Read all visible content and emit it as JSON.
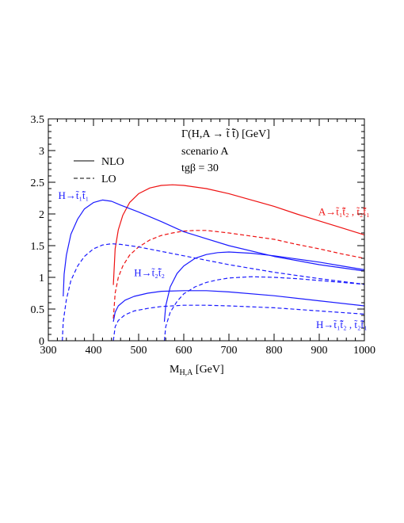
{
  "chart_data": {
    "type": "line",
    "title_lines": [
      "Γ(H,A → t̃ t̃̄) [GeV]",
      "scenario A",
      "tgβ = 30"
    ],
    "xlabel": "M",
    "xlabel_sub": "H,A",
    "xlabel_unit": " [GeV]",
    "ylabel": "",
    "xlim": [
      300,
      1000
    ],
    "ylim": [
      0,
      3.5
    ],
    "x_ticks": [
      300,
      400,
      500,
      600,
      700,
      800,
      900,
      1000
    ],
    "y_ticks": [
      0,
      0.5,
      1,
      1.5,
      2,
      2.5,
      3,
      3.5
    ],
    "x_tick_labels": [
      "300",
      "400",
      "500",
      "600",
      "700",
      "800",
      "900",
      "1000"
    ],
    "y_tick_labels": [
      "0",
      "0.5",
      "1",
      "1.5",
      "2",
      "2.5",
      "3",
      "3.5"
    ],
    "legend": [
      {
        "label": "NLO",
        "style": "solid"
      },
      {
        "label": "LO",
        "style": "dashed"
      }
    ],
    "annotations": [
      {
        "text": "H→t̃₁t̃̄₁",
        "color": "#1a1aff",
        "x": 322,
        "y": 2.24
      },
      {
        "text": "H→t̃₂t̃̄₂",
        "color": "#1a1aff",
        "x": 490,
        "y": 1.02
      },
      {
        "text": "H→t̃₁t̃̄₂ , t̃₂t̃̄₁",
        "color": "#1a1aff",
        "x": 893,
        "y": 0.2
      },
      {
        "text": "A→t̃₁t̃̄₂ , t̃₂t̃̄₁",
        "color": "#ee1111",
        "x": 898,
        "y": 1.98
      }
    ],
    "series": [
      {
        "name": "A→t̃₁t̃̄₂ , t̃₂t̃̄₁",
        "order": "NLO",
        "color": "#ee1111",
        "dash": false,
        "x": [
          444,
          448,
          455,
          465,
          480,
          500,
          525,
          550,
          575,
          600,
          650,
          700,
          750,
          800,
          850,
          900,
          950,
          1000
        ],
        "y": [
          0.88,
          1.45,
          1.75,
          1.98,
          2.18,
          2.32,
          2.41,
          2.45,
          2.46,
          2.45,
          2.4,
          2.32,
          2.22,
          2.12,
          2.0,
          1.89,
          1.78,
          1.67
        ]
      },
      {
        "name": "A→t̃₁t̃̄₂ , t̃₂t̃̄₁",
        "order": "LO",
        "color": "#ee1111",
        "dash": true,
        "x": [
          444,
          448,
          455,
          465,
          480,
          500,
          525,
          550,
          575,
          600,
          625,
          650,
          700,
          750,
          800,
          850,
          900,
          950,
          1000
        ],
        "y": [
          0.35,
          0.75,
          1.0,
          1.18,
          1.35,
          1.48,
          1.59,
          1.66,
          1.7,
          1.73,
          1.74,
          1.74,
          1.7,
          1.65,
          1.6,
          1.52,
          1.45,
          1.37,
          1.3
        ]
      },
      {
        "name": "H→t̃₁t̃̄₁",
        "order": "NLO",
        "color": "#1a1aff",
        "dash": false,
        "x": [
          333,
          335,
          340,
          350,
          365,
          380,
          400,
          420,
          440,
          460,
          500,
          550,
          600,
          700,
          800,
          900,
          1000
        ],
        "y": [
          0.7,
          1.05,
          1.35,
          1.68,
          1.92,
          2.08,
          2.18,
          2.22,
          2.2,
          2.14,
          2.03,
          1.88,
          1.72,
          1.5,
          1.33,
          1.2,
          1.1
        ]
      },
      {
        "name": "H→t̃₁t̃̄₁",
        "order": "LO",
        "color": "#1a1aff",
        "dash": true,
        "x": [
          331,
          333,
          340,
          350,
          365,
          380,
          400,
          420,
          440,
          460,
          500,
          550,
          600,
          700,
          800,
          900,
          1000
        ],
        "y": [
          0.0,
          0.3,
          0.65,
          0.95,
          1.18,
          1.33,
          1.45,
          1.51,
          1.53,
          1.52,
          1.48,
          1.41,
          1.34,
          1.2,
          1.08,
          0.98,
          0.89
        ]
      },
      {
        "name": "H→t̃₂t̃̄₂",
        "order": "NLO",
        "color": "#1a1aff",
        "dash": false,
        "x": [
          557,
          560,
          570,
          585,
          600,
          625,
          650,
          675,
          700,
          750,
          800,
          850,
          900,
          950,
          1000
        ],
        "y": [
          0.3,
          0.55,
          0.85,
          1.06,
          1.18,
          1.3,
          1.36,
          1.39,
          1.4,
          1.38,
          1.34,
          1.29,
          1.24,
          1.18,
          1.12
        ]
      },
      {
        "name": "H→t̃₂t̃̄₂",
        "order": "LO",
        "color": "#1a1aff",
        "dash": true,
        "x": [
          557,
          560,
          570,
          585,
          600,
          625,
          650,
          675,
          700,
          750,
          800,
          850,
          900,
          950,
          1000
        ],
        "y": [
          0.0,
          0.22,
          0.45,
          0.62,
          0.74,
          0.85,
          0.92,
          0.96,
          0.99,
          1.01,
          1.0,
          0.98,
          0.95,
          0.92,
          0.89
        ]
      },
      {
        "name": "H→t̃₁t̃̄₂ , t̃₂t̃̄₁",
        "order": "NLO",
        "color": "#1a1aff",
        "dash": false,
        "x": [
          444,
          448,
          455,
          470,
          490,
          520,
          550,
          600,
          650,
          700,
          800,
          900,
          1000
        ],
        "y": [
          0.3,
          0.45,
          0.55,
          0.64,
          0.7,
          0.75,
          0.78,
          0.79,
          0.79,
          0.77,
          0.71,
          0.63,
          0.55
        ]
      },
      {
        "name": "H→t̃₁t̃̄₂ , t̃₂t̃̄₁",
        "order": "LO",
        "color": "#1a1aff",
        "dash": true,
        "x": [
          444,
          448,
          455,
          470,
          490,
          520,
          550,
          600,
          650,
          700,
          800,
          900,
          1000
        ],
        "y": [
          0.0,
          0.22,
          0.32,
          0.41,
          0.47,
          0.51,
          0.54,
          0.56,
          0.56,
          0.55,
          0.52,
          0.47,
          0.42
        ]
      }
    ]
  }
}
